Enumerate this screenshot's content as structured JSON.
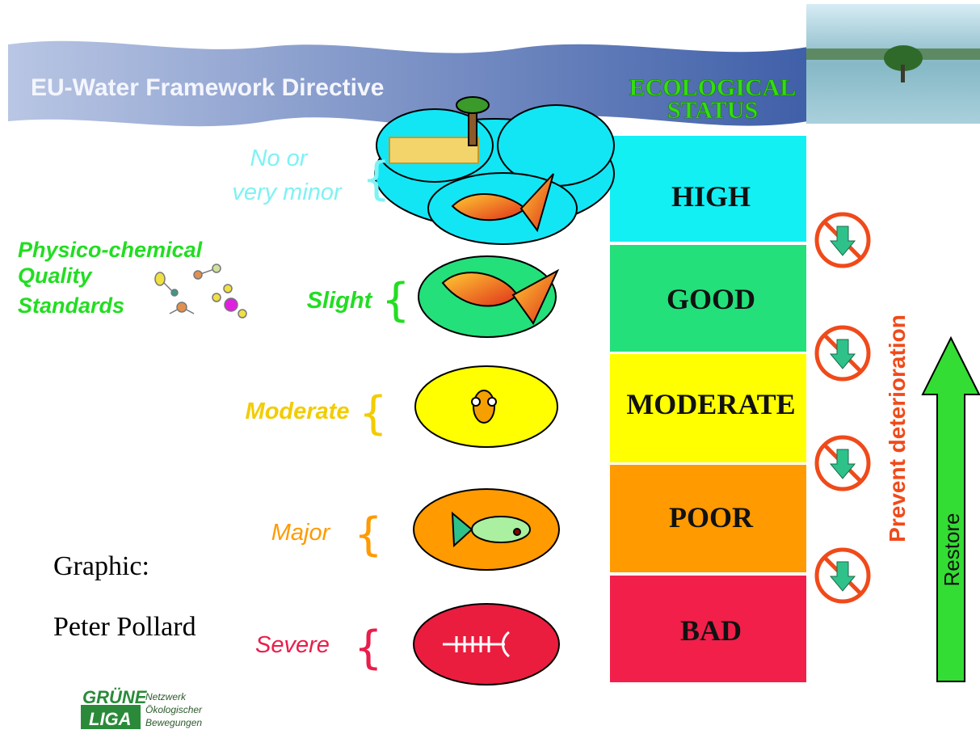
{
  "header": {
    "title": "EU-Water Framework Directive",
    "status_heading": [
      "ECOLOGICAL",
      "STATUS"
    ]
  },
  "rows": [
    {
      "deviation": [
        "No or",
        "very minor"
      ],
      "status": "HIGH"
    },
    {
      "deviation": [
        "Slight"
      ],
      "status": "GOOD"
    },
    {
      "deviation": [
        "Moderate"
      ],
      "status": "MODERATE"
    },
    {
      "deviation": [
        "Major"
      ],
      "status": "POOR"
    },
    {
      "deviation": [
        "Severe"
      ],
      "status": "BAD"
    }
  ],
  "physico_chemical": [
    "Physico-chemical",
    "Quality",
    "Standards"
  ],
  "prevent": "Prevent deterioration",
  "restore": "Restore",
  "credit": [
    "Graphic:",
    "Peter Pollard"
  ],
  "logo": {
    "name": [
      "GRÜNE",
      "LIGA"
    ],
    "tagline": [
      "Netzwerk",
      "Ökologischer",
      "Bewegungen"
    ]
  }
}
